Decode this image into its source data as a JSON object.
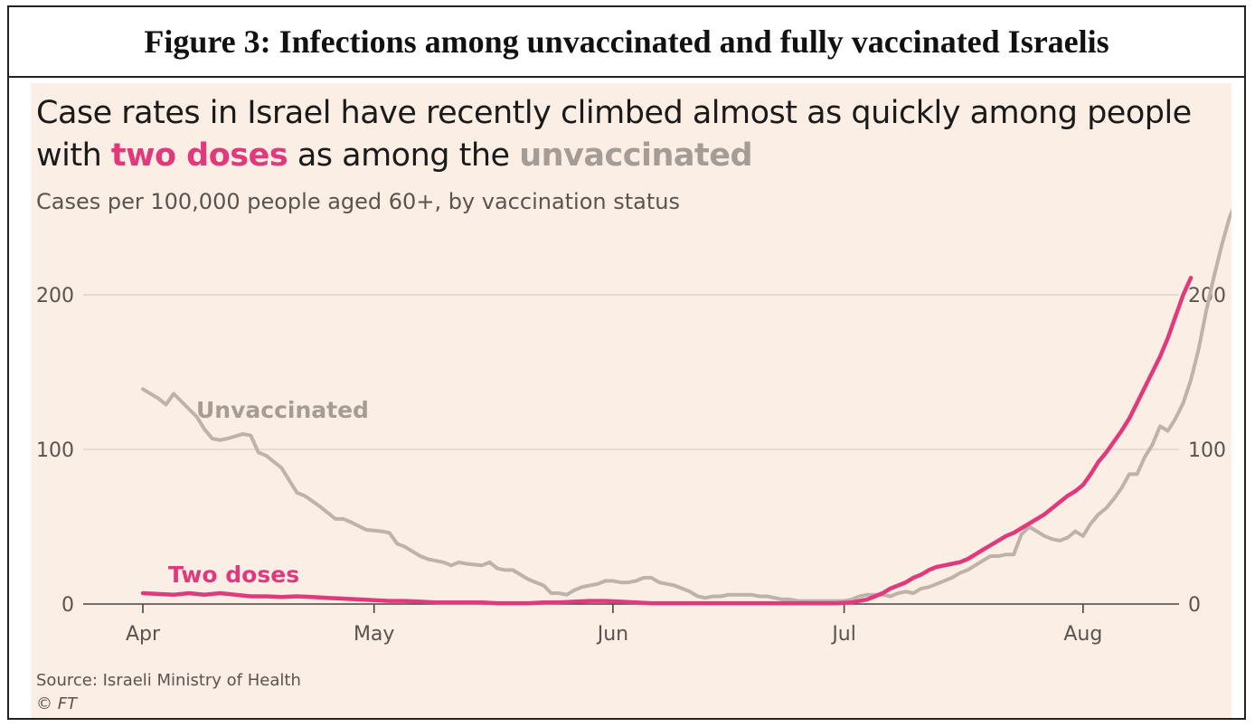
{
  "figure_title": "Figure 3: Infections among unvaccinated and fully vaccinated Israelis",
  "headline": {
    "part1": "Case rates in Israel have recently climbed almost as quickly among people with ",
    "highlight_two": "two doses",
    "part2": " as among the ",
    "highlight_unvaccinated": "unvaccinated"
  },
  "source": "Source: Israeli Ministry of Health",
  "copyright": "© FT",
  "chart_data": {
    "type": "line",
    "title": "",
    "subtitle": "Cases per 100,000 people aged 60+, by vaccination status",
    "xlabel": "",
    "ylabel": "",
    "x_ticks": [
      "Apr",
      "May",
      "Jun",
      "Jul",
      "Aug"
    ],
    "y_ticks": [
      0,
      100,
      200
    ],
    "ylim": [
      0,
      270
    ],
    "grid": true,
    "x_unit": "day index from 1 Apr",
    "colors": {
      "unvaccinated": "#bdb3ab",
      "two_doses": "#e0397c",
      "grid": "#e2d6cc",
      "axis": "#444444"
    },
    "series": [
      {
        "name": "Unvaccinated",
        "key": "unvaccinated",
        "points": [
          [
            0,
            139
          ],
          [
            2,
            133
          ],
          [
            3,
            129
          ],
          [
            4,
            136
          ],
          [
            5,
            131
          ],
          [
            6,
            126
          ],
          [
            7,
            121
          ],
          [
            8,
            113
          ],
          [
            9,
            107
          ],
          [
            10,
            106
          ],
          [
            11,
            107
          ],
          [
            13,
            110
          ],
          [
            14,
            109
          ],
          [
            15,
            98
          ],
          [
            16,
            96
          ],
          [
            17,
            92
          ],
          [
            18,
            88
          ],
          [
            20,
            72
          ],
          [
            21,
            70
          ],
          [
            23,
            63
          ],
          [
            25,
            55
          ],
          [
            26,
            55
          ],
          [
            27,
            53
          ],
          [
            29,
            48
          ],
          [
            31,
            47
          ],
          [
            32,
            46
          ],
          [
            33,
            39
          ],
          [
            34,
            37
          ],
          [
            36,
            31
          ],
          [
            37,
            29
          ],
          [
            39,
            27
          ],
          [
            40,
            25
          ],
          [
            41,
            27
          ],
          [
            42,
            26
          ],
          [
            44,
            25
          ],
          [
            45,
            27
          ],
          [
            46,
            23
          ],
          [
            47,
            22
          ],
          [
            48,
            22
          ],
          [
            49,
            19
          ],
          [
            50,
            16
          ],
          [
            51,
            14
          ],
          [
            52,
            12
          ],
          [
            53,
            7
          ],
          [
            54,
            7
          ],
          [
            55,
            6
          ],
          [
            56,
            9
          ],
          [
            57,
            11
          ],
          [
            58,
            12
          ],
          [
            59,
            13
          ],
          [
            60,
            15
          ],
          [
            61,
            15
          ],
          [
            62,
            14
          ],
          [
            63,
            14
          ],
          [
            64,
            15
          ],
          [
            65,
            17
          ],
          [
            66,
            17
          ],
          [
            67,
            14
          ],
          [
            68,
            13
          ],
          [
            69,
            12
          ],
          [
            70,
            10
          ],
          [
            71,
            8
          ],
          [
            72,
            5
          ],
          [
            73,
            4
          ],
          [
            74,
            5
          ],
          [
            75,
            5
          ],
          [
            76,
            6
          ],
          [
            77,
            6
          ],
          [
            78,
            6
          ],
          [
            79,
            6
          ],
          [
            80,
            5
          ],
          [
            81,
            5
          ],
          [
            82,
            4
          ],
          [
            83,
            3
          ],
          [
            84,
            3
          ],
          [
            85,
            2
          ],
          [
            86,
            2
          ],
          [
            87,
            2
          ],
          [
            88,
            2
          ],
          [
            89,
            2
          ],
          [
            90,
            2
          ],
          [
            91,
            2
          ],
          [
            92,
            3
          ],
          [
            93,
            5
          ],
          [
            94,
            6
          ],
          [
            95,
            6
          ],
          [
            96,
            6
          ],
          [
            97,
            5
          ],
          [
            98,
            7
          ],
          [
            99,
            8
          ],
          [
            100,
            7
          ],
          [
            101,
            10
          ],
          [
            102,
            11
          ],
          [
            103,
            13
          ],
          [
            104,
            15
          ],
          [
            105,
            17
          ],
          [
            106,
            20
          ],
          [
            107,
            22
          ],
          [
            108,
            25
          ],
          [
            109,
            28
          ],
          [
            110,
            31
          ],
          [
            111,
            31
          ],
          [
            112,
            32
          ],
          [
            113,
            32
          ],
          [
            114,
            45
          ],
          [
            115,
            50
          ],
          [
            116,
            47
          ],
          [
            117,
            44
          ],
          [
            118,
            42
          ],
          [
            119,
            41
          ],
          [
            120,
            43
          ],
          [
            121,
            47
          ],
          [
            122,
            44
          ],
          [
            123,
            52
          ],
          [
            124,
            58
          ],
          [
            125,
            62
          ],
          [
            126,
            68
          ],
          [
            127,
            75
          ],
          [
            128,
            84
          ],
          [
            129,
            84
          ],
          [
            130,
            95
          ],
          [
            131,
            103
          ],
          [
            132,
            115
          ],
          [
            133,
            112
          ],
          [
            134,
            120
          ],
          [
            135,
            130
          ],
          [
            136,
            145
          ],
          [
            137,
            165
          ],
          [
            138,
            190
          ],
          [
            139,
            212
          ],
          [
            140,
            232
          ],
          [
            141,
            250
          ],
          [
            142,
            262
          ]
        ]
      },
      {
        "name": "Two doses",
        "key": "two_doses",
        "points": [
          [
            0,
            7
          ],
          [
            2,
            6.5
          ],
          [
            4,
            6
          ],
          [
            6,
            7
          ],
          [
            8,
            6
          ],
          [
            10,
            7
          ],
          [
            12,
            6
          ],
          [
            14,
            5
          ],
          [
            16,
            5
          ],
          [
            18,
            4.5
          ],
          [
            20,
            5
          ],
          [
            22,
            4.5
          ],
          [
            24,
            4
          ],
          [
            26,
            3.5
          ],
          [
            28,
            3
          ],
          [
            30,
            2.5
          ],
          [
            32,
            2
          ],
          [
            34,
            2
          ],
          [
            36,
            1.5
          ],
          [
            38,
            1
          ],
          [
            40,
            1
          ],
          [
            42,
            1
          ],
          [
            44,
            1
          ],
          [
            46,
            0.5
          ],
          [
            48,
            0.5
          ],
          [
            50,
            0.5
          ],
          [
            52,
            1
          ],
          [
            54,
            1
          ],
          [
            56,
            1.5
          ],
          [
            58,
            2
          ],
          [
            60,
            2
          ],
          [
            62,
            1.5
          ],
          [
            64,
            1
          ],
          [
            66,
            0.5
          ],
          [
            68,
            0.5
          ],
          [
            70,
            0.5
          ],
          [
            72,
            0.5
          ],
          [
            74,
            0.5
          ],
          [
            76,
            0.5
          ],
          [
            78,
            0.5
          ],
          [
            80,
            0.5
          ],
          [
            82,
            0.5
          ],
          [
            84,
            0.5
          ],
          [
            86,
            0.5
          ],
          [
            88,
            0.5
          ],
          [
            90,
            0.5
          ],
          [
            92,
            1
          ],
          [
            93,
            2
          ],
          [
            94,
            3
          ],
          [
            95,
            5
          ],
          [
            96,
            7
          ],
          [
            97,
            10
          ],
          [
            98,
            12
          ],
          [
            99,
            14
          ],
          [
            100,
            17
          ],
          [
            101,
            19
          ],
          [
            102,
            22
          ],
          [
            103,
            24
          ],
          [
            104,
            25
          ],
          [
            105,
            26
          ],
          [
            106,
            27
          ],
          [
            107,
            29
          ],
          [
            108,
            32
          ],
          [
            109,
            35
          ],
          [
            110,
            38
          ],
          [
            111,
            41
          ],
          [
            112,
            44
          ],
          [
            113,
            46
          ],
          [
            114,
            49
          ],
          [
            115,
            52
          ],
          [
            116,
            55
          ],
          [
            117,
            58
          ],
          [
            118,
            62
          ],
          [
            119,
            66
          ],
          [
            120,
            70
          ],
          [
            121,
            73
          ],
          [
            122,
            77
          ],
          [
            123,
            84
          ],
          [
            124,
            92
          ],
          [
            125,
            98
          ],
          [
            126,
            105
          ],
          [
            127,
            112
          ],
          [
            128,
            120
          ],
          [
            129,
            130
          ],
          [
            130,
            140
          ],
          [
            131,
            150
          ],
          [
            132,
            160
          ],
          [
            133,
            172
          ],
          [
            134,
            186
          ],
          [
            135,
            200
          ],
          [
            136,
            211
          ]
        ]
      }
    ],
    "labels": {
      "unvaccinated": "Unvaccinated",
      "two_doses": "Two doses"
    }
  }
}
